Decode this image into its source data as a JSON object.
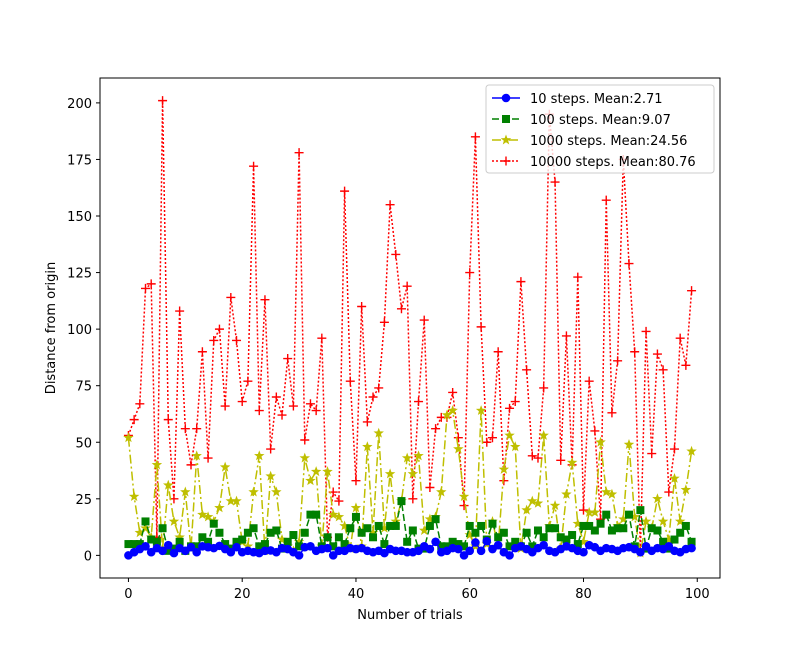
{
  "chart_data": {
    "type": "line",
    "title": "",
    "xlabel": "Number of trials",
    "ylabel": "Distance from origin",
    "xlim": [
      -5,
      104
    ],
    "ylim": [
      -10,
      211
    ],
    "xticks": [
      0,
      20,
      40,
      60,
      80,
      100
    ],
    "yticks": [
      0,
      25,
      50,
      75,
      100,
      125,
      150,
      175,
      200
    ],
    "grid": false,
    "legend_position": "top-right",
    "series": [
      {
        "name": "10 steps. Mean:2.71",
        "color": "#0000ff",
        "linestyle": "solid",
        "marker": "circle",
        "values": [
          0.0,
          1.4,
          2.8,
          4.0,
          1.4,
          3.2,
          2.0,
          4.5,
          1.0,
          3.2,
          2.0,
          3.6,
          1.4,
          4.0,
          3.6,
          3.2,
          4.2,
          2.8,
          1.4,
          3.6,
          1.4,
          2.0,
          1.4,
          1.0,
          2.0,
          2.2,
          1.4,
          3.2,
          2.8,
          1.4,
          0.0,
          3.6,
          4.0,
          2.0,
          2.8,
          3.2,
          0.0,
          2.0,
          2.0,
          3.2,
          2.8,
          3.2,
          2.0,
          1.4,
          2.0,
          1.0,
          2.8,
          2.0,
          2.0,
          1.4,
          1.4,
          2.0,
          4.0,
          2.8,
          6.0,
          1.4,
          2.0,
          3.2,
          2.8,
          0.0,
          2.0,
          5.7,
          2.0,
          6.3,
          2.8,
          4.5,
          1.4,
          0.0,
          3.2,
          4.0,
          2.8,
          1.4,
          3.2,
          4.5,
          2.0,
          1.4,
          2.8,
          4.0,
          3.2,
          2.0,
          1.4,
          4.5,
          3.6,
          2.0,
          3.2,
          2.8,
          2.0,
          3.2,
          3.6,
          2.8,
          1.4,
          4.0,
          2.0,
          3.2,
          2.8,
          4.0,
          2.0,
          1.4,
          2.8,
          3.2
        ]
      },
      {
        "name": "100 steps. Mean:9.07",
        "color": "#008000",
        "linestyle": "dashed",
        "marker": "square",
        "values": [
          5.0,
          5.0,
          5.0,
          15.0,
          7.0,
          6.0,
          12.0,
          2.0,
          3.0,
          6.0,
          2.0,
          4.0,
          4.0,
          8.0,
          6.0,
          14.0,
          10.0,
          5.0,
          3.0,
          6.0,
          7.0,
          10.0,
          12.0,
          4.0,
          5.0,
          10.0,
          11.0,
          3.0,
          6.0,
          9.0,
          4.0,
          10.0,
          18.0,
          18.0,
          4.0,
          8.0,
          4.0,
          8.0,
          5.0,
          12.0,
          17.0,
          10.0,
          12.0,
          8.0,
          13.0,
          5.0,
          13.0,
          13.0,
          24.0,
          6.0,
          11.0,
          3.0,
          3.0,
          13.0,
          16.0,
          4.0,
          4.0,
          6.0,
          5.0,
          4.0,
          13.0,
          10.0,
          13.0,
          7.0,
          14.0,
          8.0,
          10.0,
          4.0,
          6.0,
          4.0,
          10.0,
          4.0,
          11.0,
          8.0,
          12.0,
          12.0,
          8.0,
          7.0,
          9.0,
          5.0,
          13.0,
          13.0,
          11.0,
          14.0,
          18.0,
          11.0,
          12.0,
          12.0,
          18.0,
          4.0,
          20.0,
          3.0,
          12.0,
          11.0,
          6.0,
          3.0,
          7.0,
          10.0,
          13.0,
          6.0
        ]
      },
      {
        "name": "1000 steps. Mean:24.56",
        "color": "#bfbf00",
        "linestyle": "dashdot",
        "marker": "star",
        "values": [
          52.0,
          26.0,
          10.0,
          12.0,
          8.0,
          40.0,
          3.0,
          31.0,
          15.0,
          8.0,
          28.0,
          3.0,
          44.0,
          18.0,
          17.0,
          15.0,
          21.0,
          39.0,
          24.0,
          24.0,
          6.0,
          4.0,
          28.0,
          44.0,
          2.0,
          35.0,
          28.0,
          7.0,
          4.0,
          2.0,
          6.0,
          43.0,
          33.0,
          37.0,
          4.0,
          37.0,
          18.0,
          17.0,
          13.0,
          3.0,
          21.0,
          4.0,
          48.0,
          10.0,
          54.0,
          12.0,
          36.0,
          15.0,
          24.0,
          43.0,
          36.0,
          44.0,
          11.0,
          16.0,
          17.0,
          28.0,
          62.0,
          64.0,
          47.0,
          26.0,
          9.0,
          4.0,
          64.0,
          5.0,
          15.0,
          4.0,
          38.0,
          53.0,
          48.0,
          3.0,
          20.0,
          24.0,
          23.0,
          53.0,
          13.0,
          22.0,
          3.0,
          27.0,
          41.0,
          14.0,
          6.0,
          19.0,
          19.0,
          50.0,
          28.0,
          27.0,
          13.0,
          16.0,
          49.0,
          17.0,
          1.0,
          15.0,
          12.0,
          25.0,
          15.0,
          7.0,
          34.0,
          15.0,
          29.0,
          46.0
        ]
      },
      {
        "name": "10000 steps. Mean:80.76",
        "color": "#ff0000",
        "linestyle": "dotted",
        "marker": "plus",
        "values": [
          53.0,
          60.0,
          67.0,
          118.0,
          120.0,
          8.0,
          201.0,
          60.0,
          25.0,
          108.0,
          56.0,
          40.0,
          56.0,
          90.0,
          43.0,
          95.0,
          100.0,
          66.0,
          114.0,
          95.0,
          68.0,
          77.0,
          172.0,
          64.0,
          113.0,
          47.0,
          70.0,
          62.0,
          87.0,
          66.0,
          178.0,
          51.0,
          67.0,
          64.0,
          96.0,
          8.0,
          28.0,
          24.0,
          161.0,
          77.0,
          33.0,
          110.0,
          59.0,
          70.0,
          74.0,
          103.0,
          155.0,
          133.0,
          109.0,
          119.0,
          25.0,
          68.0,
          104.0,
          30.0,
          56.0,
          61.0,
          61.0,
          72.0,
          52.0,
          22.0,
          125.0,
          185.0,
          101.0,
          50.0,
          52.0,
          90.0,
          33.0,
          65.0,
          68.0,
          121.0,
          82.0,
          44.0,
          43.0,
          74.0,
          195.0,
          165.0,
          42.0,
          97.0,
          40.0,
          123.0,
          20.0,
          77.0,
          55.0,
          16.0,
          157.0,
          63.0,
          86.0,
          175.0,
          129.0,
          90.0,
          2.0,
          99.0,
          45.0,
          89.0,
          82.0,
          28.0,
          47.0,
          96.0,
          84.0,
          117.0
        ]
      }
    ]
  }
}
